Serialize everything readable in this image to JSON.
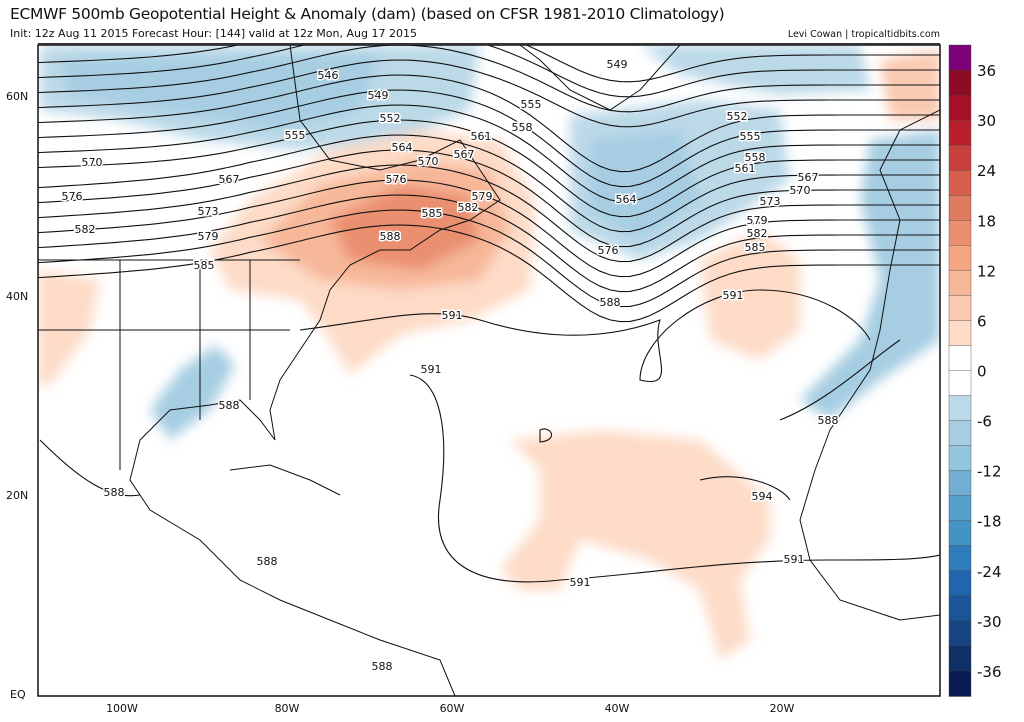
{
  "header": {
    "title": "ECMWF 500mb Geopotential Height & Anomaly (dam) (based on CFSR 1981-2010 Climatology)",
    "subtitle": "Init: 12z Aug 11 2015   Forecast Hour: [144]   valid at 12z Mon, Aug 17 2015",
    "credit": "Levi Cowan | tropicaltidbits.com"
  },
  "axes": {
    "lat_labels": [
      "60N",
      "40N",
      "20N",
      "EQ"
    ],
    "lon_labels": [
      "100W",
      "80W",
      "60W",
      "40W",
      "20W"
    ]
  },
  "colorbar": {
    "labels": [
      "36",
      "30",
      "24",
      "18",
      "12",
      "6",
      "0",
      "-6",
      "-12",
      "-18",
      "-24",
      "-30",
      "-36"
    ],
    "colors": [
      "#7a0177",
      "#8b0a24",
      "#a50f28",
      "#b8202e",
      "#c8403d",
      "#d6604d",
      "#e07a60",
      "#ea8f6f",
      "#f4a582",
      "#f7b799",
      "#f9c9b1",
      "#fddbc7",
      "#ffffff",
      "#ffffff",
      "#bcd9e8",
      "#a6cde2",
      "#92c5de",
      "#72aed3",
      "#56a0cc",
      "#4393c3",
      "#2f7bbb",
      "#2166ac",
      "#1c5597",
      "#174583",
      "#0f2f67",
      "#0b1b55"
    ]
  },
  "contour_labels": [
    "546",
    "549",
    "552",
    "555",
    "564",
    "570",
    "567",
    "576",
    "561",
    "558",
    "555",
    "549",
    "552",
    "555",
    "558",
    "561",
    "567",
    "570",
    "573",
    "579",
    "582",
    "585",
    "564",
    "576",
    "579",
    "582",
    "585",
    "588",
    "591",
    "588",
    "591",
    "570",
    "567",
    "576",
    "573",
    "582",
    "579",
    "585",
    "591",
    "588",
    "588",
    "588",
    "588",
    "591",
    "594",
    "591",
    "588"
  ]
}
